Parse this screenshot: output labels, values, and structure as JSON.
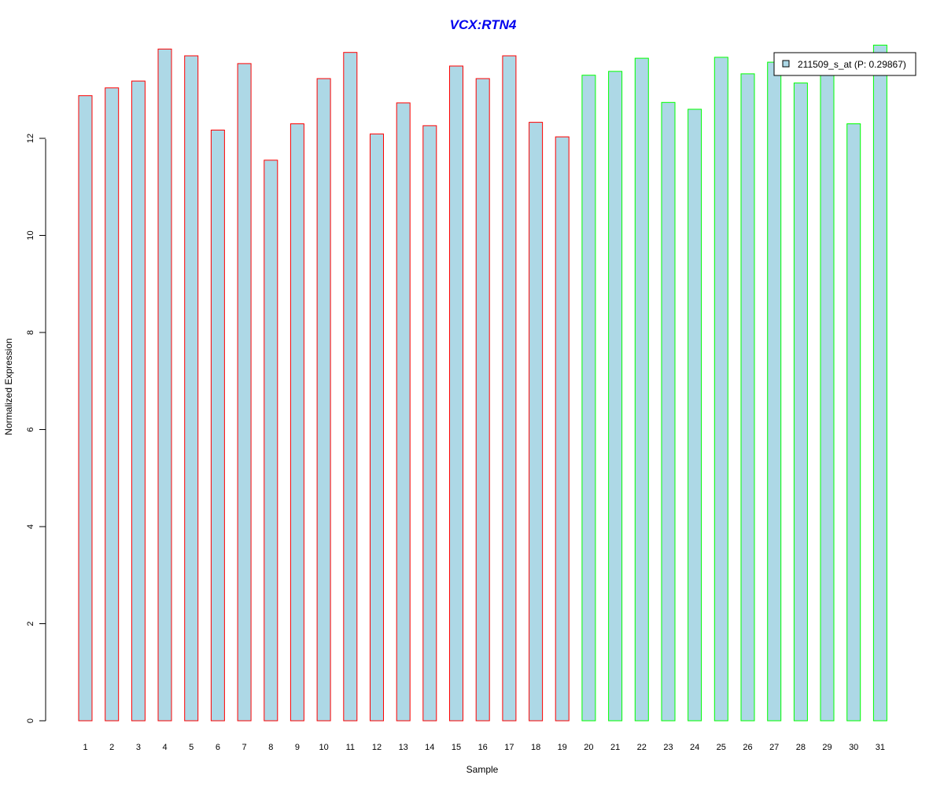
{
  "chart_data": {
    "type": "bar",
    "title": "VCX:RTN4",
    "xlabel": "Sample",
    "ylabel": "Normalized Expression",
    "ylim": [
      0,
      14
    ],
    "yticks": [
      "0",
      "2",
      "4",
      "6",
      "8",
      "10",
      "12"
    ],
    "categories": [
      "1",
      "2",
      "3",
      "4",
      "5",
      "6",
      "7",
      "8",
      "9",
      "10",
      "11",
      "12",
      "13",
      "14",
      "15",
      "16",
      "17",
      "18",
      "19",
      "20",
      "21",
      "22",
      "23",
      "24",
      "25",
      "26",
      "27",
      "28",
      "29",
      "30",
      "31"
    ],
    "series": [
      {
        "name": "211509_s_at (P: 0.29867)",
        "values": [
          12.88,
          13.04,
          13.18,
          13.84,
          13.7,
          12.17,
          13.54,
          11.55,
          12.3,
          13.23,
          13.77,
          12.09,
          12.73,
          12.26,
          13.49,
          13.23,
          13.7,
          12.33,
          12.03,
          13.3,
          13.38,
          13.65,
          12.74,
          12.6,
          13.67,
          13.33,
          13.57,
          13.14,
          13.4,
          12.3,
          13.92
        ],
        "group_colors": [
          "#ff0000",
          "#ff0000",
          "#ff0000",
          "#ff0000",
          "#ff0000",
          "#ff0000",
          "#ff0000",
          "#ff0000",
          "#ff0000",
          "#ff0000",
          "#ff0000",
          "#ff0000",
          "#ff0000",
          "#ff0000",
          "#ff0000",
          "#ff0000",
          "#ff0000",
          "#ff0000",
          "#ff0000",
          "#00ff00",
          "#00ff00",
          "#00ff00",
          "#00ff00",
          "#00ff00",
          "#00ff00",
          "#00ff00",
          "#00ff00",
          "#00ff00",
          "#00ff00",
          "#00ff00",
          "#00ff00"
        ]
      }
    ],
    "legend_position": "top-right",
    "grid": false
  },
  "colors": {
    "bar_fill": "#add8e6",
    "title": "#0000ee",
    "axis": "#000000"
  }
}
